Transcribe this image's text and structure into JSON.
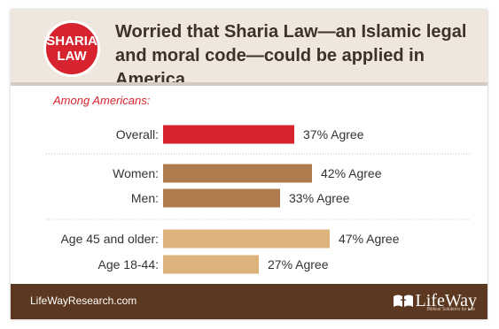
{
  "header": {
    "badge_line1": "SHARIA",
    "badge_line2": "LAW",
    "title_line1": "Worried that Sharia Law—an Islamic legal",
    "title_line2": "and moral code—could be applied in America."
  },
  "subtitle": "Among Americans:",
  "footer": {
    "url": "LifeWayResearch.com",
    "logo": "LifeWay",
    "logo_tagline": "Biblical Solutions for Life"
  },
  "colors": {
    "red": "#d7232e",
    "brown": "#b07b4f",
    "tan": "#dcb37a",
    "divider": "#c9b8a6",
    "footer": "#5c3820"
  },
  "chart_data": {
    "type": "bar",
    "orientation": "horizontal",
    "title": "Worried that Sharia Law—an Islamic legal and moral code—could be applied in America.",
    "categories": [
      "Overall:",
      "Women:",
      "Men:",
      "Age 45 and older:",
      "Age 18-44:"
    ],
    "values": [
      37,
      42,
      33,
      47,
      27
    ],
    "value_suffix": "% Agree",
    "groups": [
      {
        "categories": [
          "Overall:"
        ],
        "color": "#d7232e"
      },
      {
        "categories": [
          "Women:",
          "Men:"
        ],
        "color": "#b07b4f"
      },
      {
        "categories": [
          "Age 45 and older:",
          "Age 18-44:"
        ],
        "color": "#dcb37a"
      }
    ],
    "xlim": [
      0,
      100
    ],
    "grid": false,
    "legend": "none"
  }
}
